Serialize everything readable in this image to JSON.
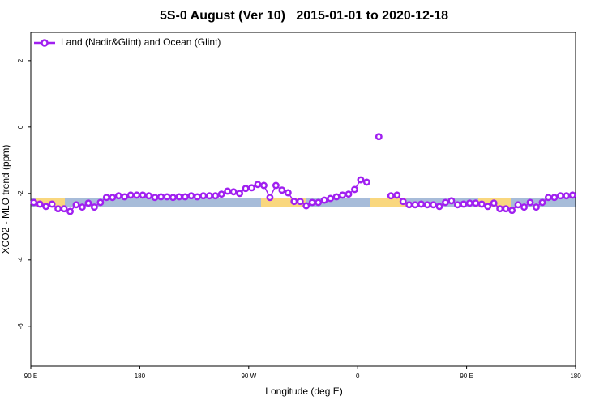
{
  "chart_data": {
    "type": "line",
    "title": "5S-0 August (Ver 10)   2015-01-01 to 2020-12-18",
    "xlabel": "Longitude (deg E)",
    "ylabel": "XCO2 - MLO trend (ppm)",
    "xlim": [
      90,
      540
    ],
    "ylim": [
      -7.2,
      2.85
    ],
    "xticks": [
      {
        "value": 90,
        "label": "90 E"
      },
      {
        "value": 180,
        "label": "180"
      },
      {
        "value": 270,
        "label": "90 W"
      },
      {
        "value": 360,
        "label": "0"
      },
      {
        "value": 450,
        "label": "90 E"
      },
      {
        "value": 540,
        "label": "180"
      }
    ],
    "yticks": [
      -6,
      -4,
      -2,
      0,
      2
    ],
    "legend": "top-left",
    "x": [
      92.5,
      97.5,
      102.5,
      107.5,
      112.5,
      117.5,
      122.5,
      127.5,
      132.5,
      137.5,
      142.5,
      147.5,
      152.5,
      157.5,
      162.5,
      167.5,
      172.5,
      177.5,
      182.5,
      187.5,
      192.5,
      197.5,
      202.5,
      207.5,
      212.5,
      217.5,
      222.5,
      227.5,
      232.5,
      237.5,
      242.5,
      247.5,
      252.5,
      257.5,
      262.5,
      267.5,
      272.5,
      277.5,
      282.5,
      287.5,
      292.5,
      297.5,
      302.5,
      307.5,
      312.5,
      317.5,
      322.5,
      327.5,
      332.5,
      337.5,
      342.5,
      347.5,
      352.5,
      357.5,
      362.5,
      367.5,
      372.5,
      377.5,
      382.5,
      387.5,
      392.5,
      397.5,
      402.5,
      407.5,
      412.5,
      417.5,
      422.5,
      427.5,
      432.5,
      437.5,
      442.5,
      447.5,
      452.5,
      457.5,
      462.5,
      467.5,
      472.5,
      477.5,
      482.5,
      487.5,
      492.5,
      497.5,
      502.5,
      507.5,
      512.5,
      517.5,
      522.5,
      527.5,
      532.5,
      537.5
    ],
    "series": [
      {
        "name": "Land (Nadir&Glint) and Ocean (Glint)",
        "color": "#a020f0",
        "values": [
          -2.27,
          -2.32,
          -2.39,
          -2.32,
          -2.46,
          -2.46,
          -2.54,
          -2.34,
          -2.41,
          -2.29,
          -2.41,
          -2.27,
          -2.12,
          -2.12,
          -2.07,
          -2.1,
          -2.05,
          -2.05,
          -2.05,
          -2.07,
          -2.12,
          -2.1,
          -2.1,
          -2.12,
          -2.1,
          -2.1,
          -2.07,
          -2.1,
          -2.07,
          -2.07,
          -2.07,
          -2.02,
          -1.93,
          -1.95,
          -2.0,
          -1.85,
          -1.83,
          -1.73,
          -1.76,
          -2.12,
          -1.76,
          -1.9,
          -1.98,
          -2.24,
          -2.24,
          -2.37,
          -2.27,
          -2.27,
          -2.2,
          -2.15,
          -2.1,
          -2.05,
          -2.02,
          -1.88,
          -1.59,
          -1.66,
          null,
          -0.29,
          null,
          -2.07,
          -2.05,
          -2.24,
          -2.34,
          -2.34,
          -2.32,
          -2.34,
          -2.34,
          -2.39,
          -2.27,
          -2.22,
          -2.34,
          -2.32,
          -2.29,
          -2.29,
          -2.32,
          -2.39,
          -2.29,
          -2.46,
          -2.46,
          -2.51,
          -2.34,
          -2.41,
          -2.27,
          -2.41,
          -2.27,
          -2.12,
          -2.12,
          -2.07,
          -2.07,
          -2.05
        ]
      }
    ]
  }
}
